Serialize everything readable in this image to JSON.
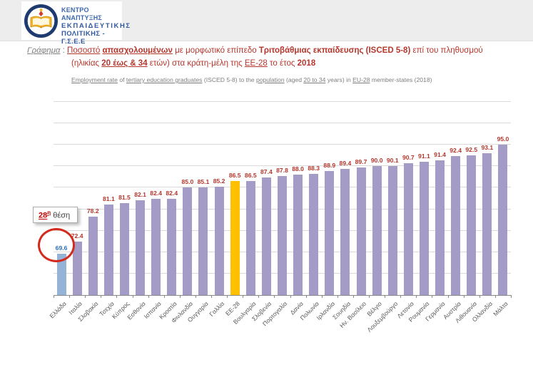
{
  "header": {
    "logo": {
      "emblem_icon": "open-book-emblem",
      "line1": "ΚΕΝΤΡΟ ΑΝΑΠΤΥΞΗΣ",
      "line2": "ΕΚΠΑΙΔΕΥΤΙΚΗΣ",
      "line3": "ΠΟΛΙΤΙΚΗΣ - Γ.Σ.Ε.Ε"
    }
  },
  "title": {
    "prefix": "Γράφημα",
    "separator": " : ",
    "line1_segments": [
      {
        "t": "Ποσοστό",
        "u": 1
      },
      {
        "t": " "
      },
      {
        "t": "απασχολουμένων",
        "b": 1,
        "u": 1
      },
      {
        "t": " με μορφωτικό επίπεδο "
      },
      {
        "t": "Τριτοβάθμιας εκπαίδευσης",
        "b": 1
      },
      {
        "t": " "
      },
      {
        "t": "(ISCED 5-8)",
        "b": 1
      },
      {
        "t": " επί του πληθυσμού"
      }
    ],
    "line2_segments": [
      {
        "t": "(ηλικίας "
      },
      {
        "t": "20 έως & 34",
        "b": 1,
        "u": 1
      },
      {
        "t": " ετών) στα κράτη-μέλη της "
      },
      {
        "t": "ΕΕ-28",
        "u": 1
      },
      {
        "t": " το έτος "
      },
      {
        "t": "2018",
        "b": 1
      }
    ],
    "subtitle_segments": [
      {
        "t": "Employment rate",
        "u": 1
      },
      {
        "t": " of "
      },
      {
        "t": "tertiary education graduates",
        "u": 1
      },
      {
        "t": " (ISCED 5-8) to the "
      },
      {
        "t": "population",
        "u": 1
      },
      {
        "t": " (aged "
      },
      {
        "t": "20 to 34",
        "u": 1
      },
      {
        "t": " years) in "
      },
      {
        "t": "EU-28",
        "u": 1
      },
      {
        "t": " member-states (2018)"
      }
    ]
  },
  "annotation": {
    "rank_number": "28",
    "rank_sup": "η",
    "rank_rest": " θέση"
  },
  "chart_data": {
    "type": "bar",
    "title": "Ποσοστό απασχολουμένων με μορφωτικό επίπεδο Τριτοβάθμιας εκπαίδευσης (ISCED 5-8) επί του πληθυσμού (ηλικίας 20 έως & 34 ετών) στα κράτη-μέλη της ΕΕ-28 το έτος 2018",
    "xlabel": "",
    "ylabel": "",
    "ylim": [
      60,
      105
    ],
    "grid_step": 5,
    "grid": true,
    "legend": "none",
    "categories": [
      "Ελλάδα",
      "Ιταλία",
      "Σλοβακία",
      "Τσεχία",
      "Κύπρος",
      "Εσθονία",
      "Ισπανία",
      "Κροατία",
      "Φινλανδία",
      "Ουγγαρία",
      "Γαλλία",
      "ΕΕ-28",
      "Βουλγαρία",
      "Σλοβενία",
      "Πορτογαλία",
      "Δανία",
      "Πολωνία",
      "Ιρλανδία",
      "Σουηδία",
      "Ην. Βασίλειο",
      "Βέλγιο",
      "Λουξεμβούργο",
      "Λετονία",
      "Ρουμανία",
      "Γερμανία",
      "Αυστρία",
      "Λιθουανία",
      "Ολλανδία",
      "Μάλτα"
    ],
    "values": [
      69.6,
      72.4,
      78.2,
      81.1,
      81.5,
      82.1,
      82.4,
      82.4,
      85.0,
      85.1,
      85.2,
      86.5,
      86.5,
      87.4,
      87.8,
      88.0,
      88.3,
      88.9,
      89.4,
      89.7,
      90.0,
      90.1,
      90.7,
      91.1,
      91.4,
      92.4,
      92.5,
      93.1,
      95.0
    ],
    "colors": {
      "bar_default": "#a49bc7",
      "bar_greece": "#94b3d6",
      "bar_eu28": "#ffc000",
      "value_label_default": "#b5362c",
      "value_label_greece": "#2e6fb5",
      "gridline": "#d9d9d9",
      "axis": "#898989",
      "category_label": "#595959"
    },
    "special_bars": [
      {
        "index": 0,
        "bar_color": "#94b3d6",
        "label_color": "#2e6fb5"
      },
      {
        "index": 11,
        "bar_color": "#ffc000",
        "label_color": "#b5362c"
      }
    ]
  }
}
